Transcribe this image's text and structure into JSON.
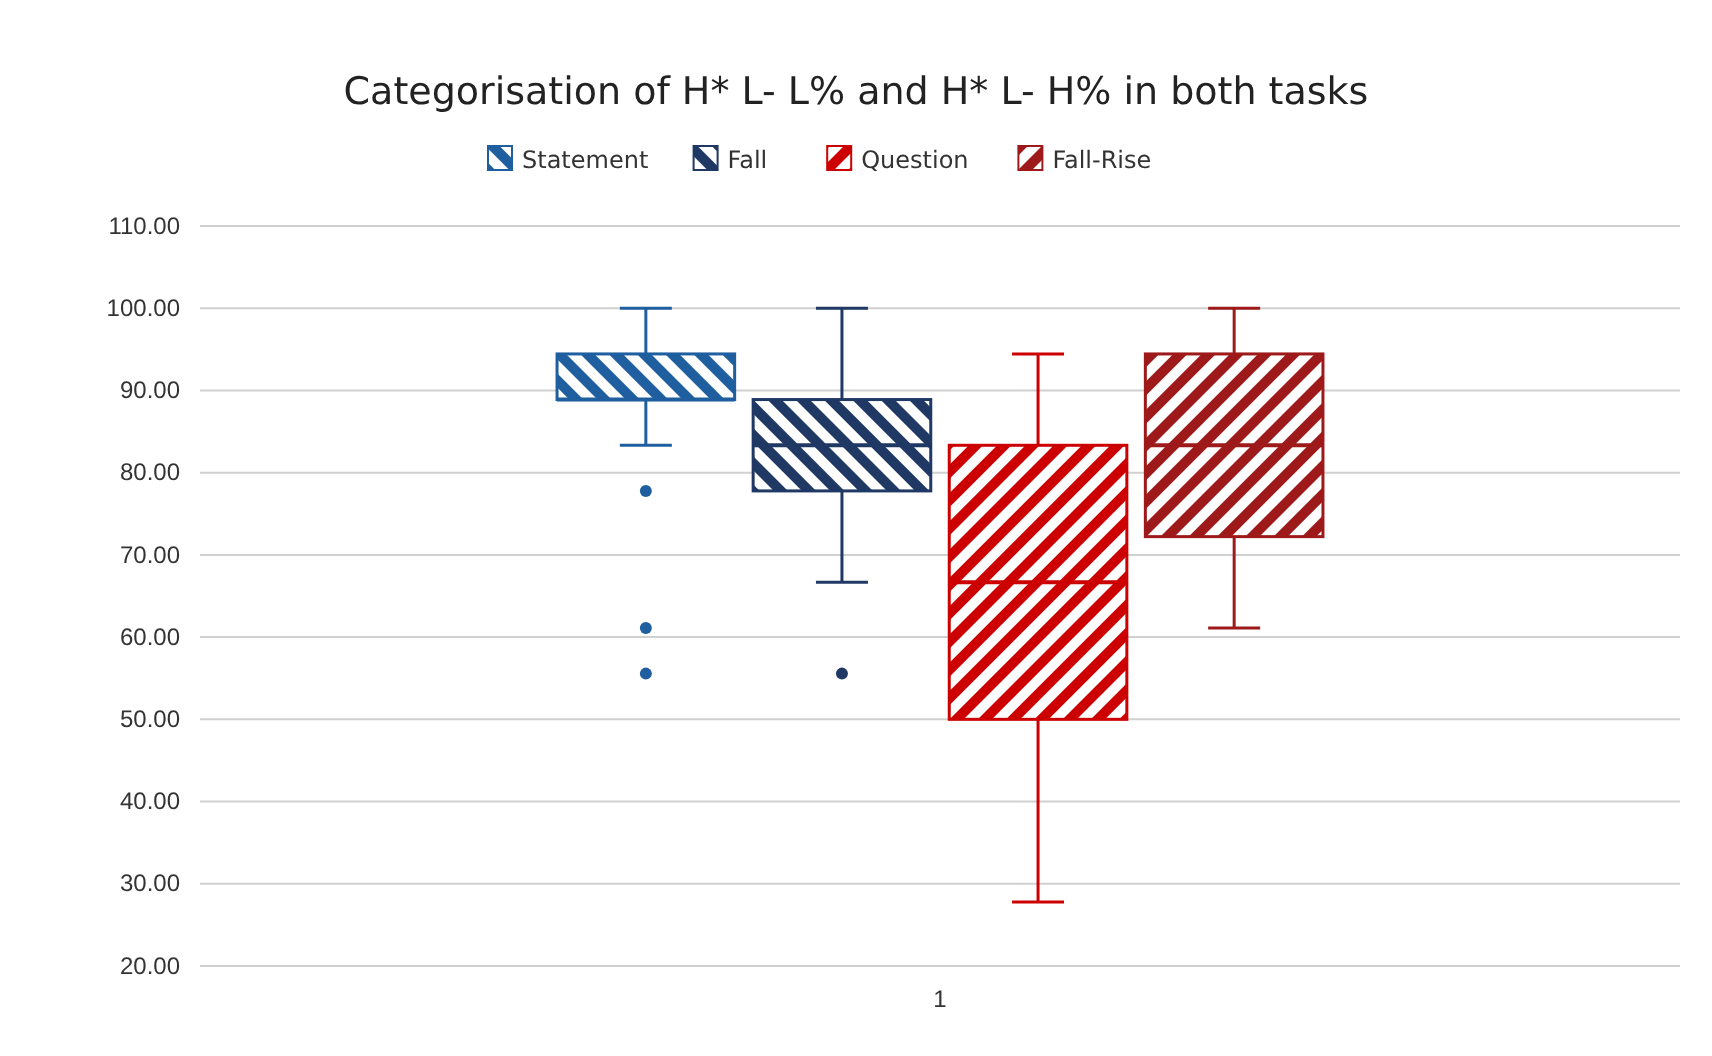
{
  "chart_data": {
    "type": "box",
    "title": "Categorisation of H* L- L%  and H* L- H% in both tasks",
    "categories": [
      "1"
    ],
    "series": [
      {
        "name": "Statement",
        "color": "#1f5f9f",
        "boxes": [
          {
            "low": 83.33,
            "q1": 88.89,
            "median": 88.89,
            "q3": 94.44,
            "high": 100,
            "outliers": [
              77.78,
              61.11,
              55.56
            ]
          }
        ]
      },
      {
        "name": "Fall",
        "color": "#1f3864",
        "boxes": [
          {
            "low": 66.67,
            "q1": 77.78,
            "median": 83.33,
            "q3": 88.89,
            "high": 100,
            "outliers": [
              55.56
            ]
          }
        ]
      },
      {
        "name": "Question",
        "color": "#cc0000",
        "boxes": [
          {
            "low": 27.78,
            "q1": 50,
            "median": 66.67,
            "q3": 83.33,
            "high": 94.44
          }
        ]
      },
      {
        "name": "Fall-Rise",
        "color": "#9e1a1a",
        "boxes": [
          {
            "low": 61.11,
            "q1": 72.22,
            "median": 83.33,
            "q3": 94.44,
            "high": 100
          }
        ]
      }
    ],
    "ylim": [
      20,
      110
    ],
    "yticks": [
      {
        "value": 20,
        "label": "20.00"
      },
      {
        "value": 30,
        "label": "30.00"
      },
      {
        "value": 40,
        "label": "40.00"
      },
      {
        "value": 50,
        "label": "50.00"
      },
      {
        "value": 60,
        "label": "60.00"
      },
      {
        "value": 70,
        "label": "70.00"
      },
      {
        "value": 80,
        "label": "80.00"
      },
      {
        "value": 90,
        "label": "90.00"
      },
      {
        "value": 100,
        "label": "100.00"
      },
      {
        "value": 110,
        "label": "110.00"
      }
    ],
    "grid": "y",
    "legend": "top"
  }
}
